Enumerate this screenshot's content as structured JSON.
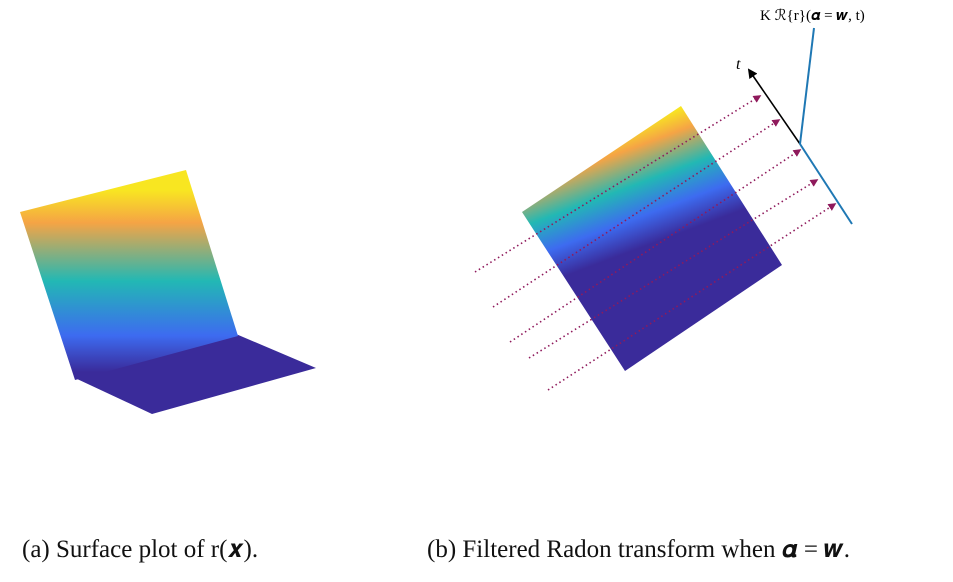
{
  "panel_a": {
    "caption": "(a) Surface plot of r(𝒙)."
  },
  "panel_b": {
    "caption": "(b) Filtered Radon transform when 𝜶 = 𝒘.",
    "axis_label": "t",
    "curve_label": "K ℛ{r}(𝜶 = 𝒘, t)",
    "ray_count": 5
  },
  "colors": {
    "viridis_yellow": "#f8e621",
    "viridis_orange": "#f5a445",
    "viridis_teal": "#22b8b4",
    "viridis_blue": "#3d6bf0",
    "viridis_purple": "#3a2b9a",
    "ray_color": "#8f1a5c",
    "transform_line": "#1f78b4",
    "axis_arrow": "#000000"
  }
}
